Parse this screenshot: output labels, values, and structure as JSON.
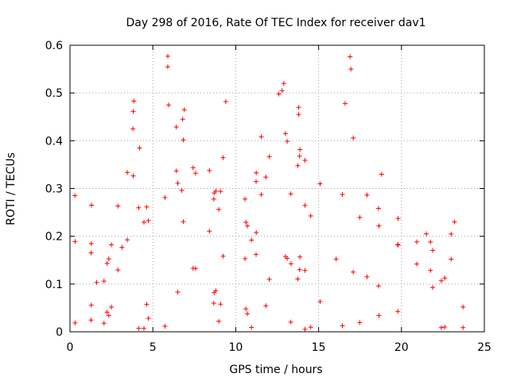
{
  "chart_data": {
    "type": "scatter",
    "title": "Day 298 of 2016, Rate Of TEC Index for receiver dav1",
    "xlabel": "GPS time / hours",
    "ylabel": "ROTI / TECUs",
    "xlim": [
      0,
      25
    ],
    "ylim": [
      0,
      0.6
    ],
    "xticks": [
      0,
      5,
      10,
      15,
      20,
      25
    ],
    "xtick_labels": [
      "0",
      "5",
      "10",
      "15",
      "20",
      "25"
    ],
    "yticks": [
      0,
      0.1,
      0.2,
      0.3,
      0.4,
      0.5,
      0.6
    ],
    "ytick_labels": [
      "0",
      "0.1",
      "0.2",
      "0.3",
      "0.4",
      "0.5",
      "0.6"
    ],
    "grid": true,
    "marker": "+",
    "marker_color": "#ff0000",
    "envelope": [
      {
        "x": 0.0,
        "y": 0.2
      },
      {
        "x": 0.3,
        "y": 0.28
      },
      {
        "x": 1.0,
        "y": 0.2
      },
      {
        "x": 1.5,
        "y": 0.26
      },
      {
        "x": 2.0,
        "y": 0.14
      },
      {
        "x": 2.8,
        "y": 0.29
      },
      {
        "x": 3.5,
        "y": 0.37
      },
      {
        "x": 3.8,
        "y": 0.48
      },
      {
        "x": 4.3,
        "y": 0.39
      },
      {
        "x": 5.0,
        "y": 0.3
      },
      {
        "x": 5.5,
        "y": 0.32
      },
      {
        "x": 6.0,
        "y": 0.58
      },
      {
        "x": 6.5,
        "y": 0.4
      },
      {
        "x": 7.0,
        "y": 0.46
      },
      {
        "x": 8.0,
        "y": 0.35
      },
      {
        "x": 9.0,
        "y": 0.38
      },
      {
        "x": 9.5,
        "y": 0.48
      },
      {
        "x": 10.0,
        "y": 0.32
      },
      {
        "x": 11.0,
        "y": 0.3
      },
      {
        "x": 11.5,
        "y": 0.42
      },
      {
        "x": 12.5,
        "y": 0.5
      },
      {
        "x": 12.9,
        "y": 0.52
      },
      {
        "x": 13.5,
        "y": 0.4
      },
      {
        "x": 14.0,
        "y": 0.47
      },
      {
        "x": 14.5,
        "y": 0.38
      },
      {
        "x": 15.0,
        "y": 0.43
      },
      {
        "x": 15.5,
        "y": 0.35
      },
      {
        "x": 16.0,
        "y": 0.3
      },
      {
        "x": 16.5,
        "y": 0.47
      },
      {
        "x": 16.9,
        "y": 0.58
      },
      {
        "x": 17.5,
        "y": 0.35
      },
      {
        "x": 18.5,
        "y": 0.33
      },
      {
        "x": 19.0,
        "y": 0.26
      },
      {
        "x": 19.5,
        "y": 0.27
      },
      {
        "x": 20.0,
        "y": 0.22
      },
      {
        "x": 21.0,
        "y": 0.19
      },
      {
        "x": 21.5,
        "y": 0.21
      },
      {
        "x": 22.5,
        "y": 0.16
      },
      {
        "x": 23.2,
        "y": 0.23
      },
      {
        "x": 23.8,
        "y": 0.05
      }
    ],
    "notable_points": [
      {
        "x": 0.3,
        "y": 0.285
      },
      {
        "x": 3.85,
        "y": 0.483
      },
      {
        "x": 3.8,
        "y": 0.425
      },
      {
        "x": 4.2,
        "y": 0.385
      },
      {
        "x": 5.9,
        "y": 0.577
      },
      {
        "x": 5.9,
        "y": 0.555
      },
      {
        "x": 5.95,
        "y": 0.475
      },
      {
        "x": 6.9,
        "y": 0.465
      },
      {
        "x": 6.8,
        "y": 0.445
      },
      {
        "x": 9.4,
        "y": 0.482
      },
      {
        "x": 12.9,
        "y": 0.52
      },
      {
        "x": 12.6,
        "y": 0.498
      },
      {
        "x": 12.8,
        "y": 0.505
      },
      {
        "x": 13.8,
        "y": 0.47
      },
      {
        "x": 13.8,
        "y": 0.455
      },
      {
        "x": 16.6,
        "y": 0.478
      },
      {
        "x": 16.9,
        "y": 0.576
      },
      {
        "x": 16.95,
        "y": 0.55
      },
      {
        "x": 18.8,
        "y": 0.33
      },
      {
        "x": 21.5,
        "y": 0.205
      },
      {
        "x": 23.2,
        "y": 0.23
      },
      {
        "x": 1.3,
        "y": 0.265
      }
    ]
  }
}
